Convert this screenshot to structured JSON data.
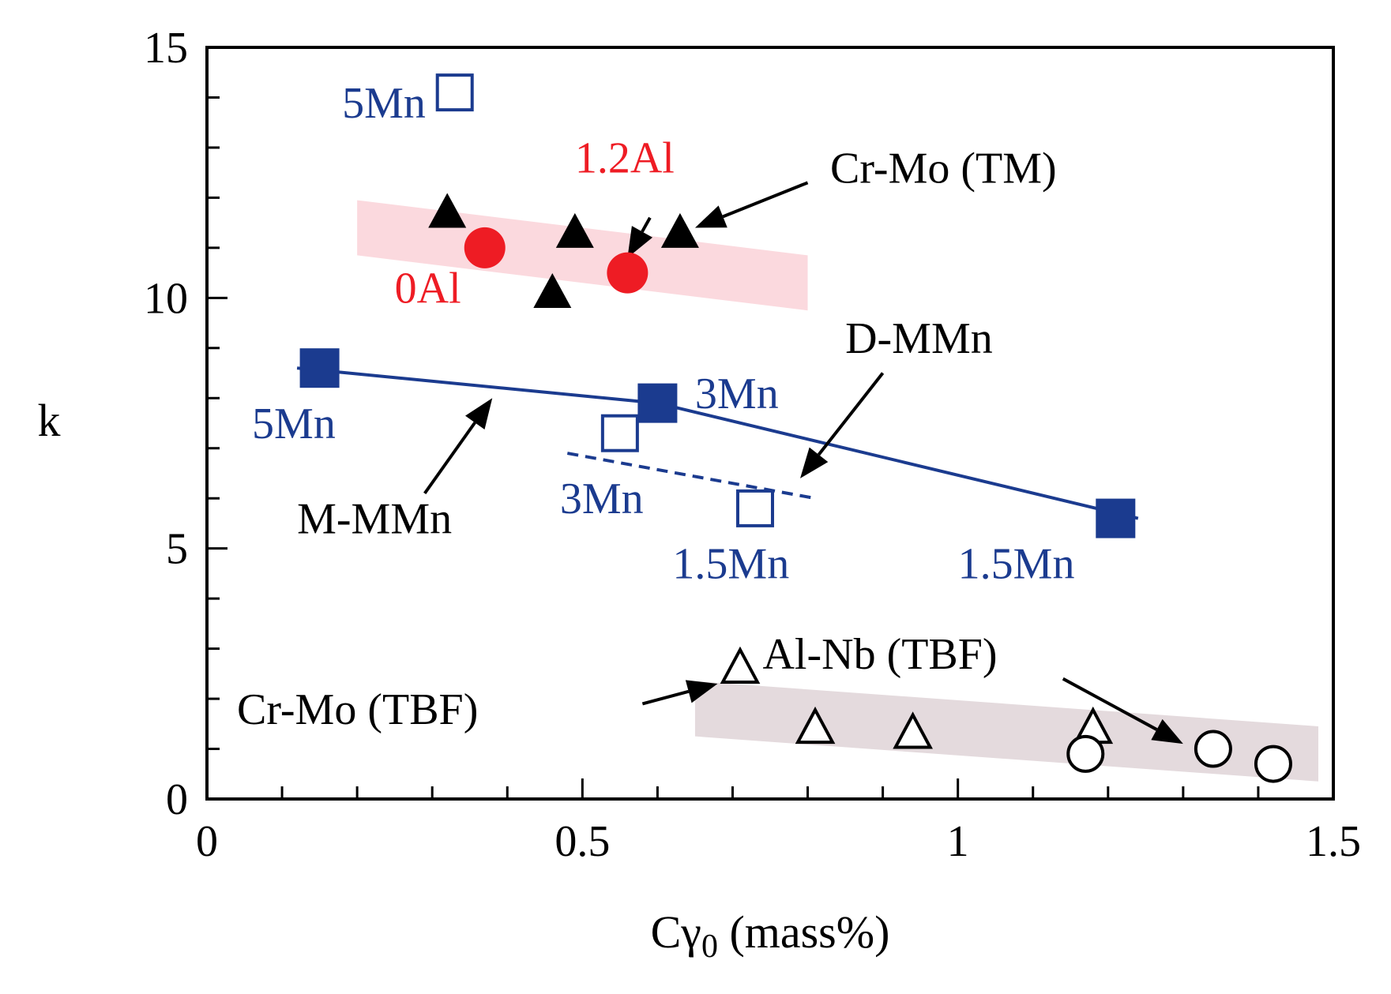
{
  "chart_data": {
    "type": "scatter",
    "title": "",
    "xlabel": "Cγ0 (mass%)",
    "xlabel_parts": {
      "main": "Cγ",
      "sub": "0",
      "rest": " (mass%)"
    },
    "ylabel": "k",
    "xlim": [
      0,
      1.5
    ],
    "ylim": [
      0,
      15
    ],
    "x_ticks": [
      0,
      0.5,
      1,
      1.5
    ],
    "x_tick_labels": [
      "0",
      "0.5",
      "1",
      "1.5"
    ],
    "y_ticks": [
      0,
      5,
      10,
      15
    ],
    "y_tick_labels": [
      "0",
      "5",
      "10",
      "15"
    ],
    "x_minor_step": 0.1,
    "y_minor_step": 1,
    "grid": false,
    "colors": {
      "red": "#ee1c24",
      "blue": "#1b3b8f",
      "black": "#000000",
      "pink_band": "#fbd9de",
      "gray_band": "#e4dadd"
    },
    "bands": [
      {
        "name": "pink-band",
        "color": "#fbd9de",
        "x": [
          0.2,
          0.8
        ],
        "y": [
          11.4,
          10.3
        ],
        "half_width_k": 0.55
      },
      {
        "name": "gray-band",
        "color": "#e4dadd",
        "x": [
          0.65,
          1.48
        ],
        "y": [
          1.8,
          0.9
        ],
        "half_width_k": 0.55
      }
    ],
    "series": [
      {
        "name": "M-MMn",
        "marker": "filled-square",
        "color": "#1b3b8f",
        "line": "solid",
        "x": [
          0.15,
          0.6,
          1.21
        ],
        "y": [
          8.6,
          7.9,
          5.6
        ]
      },
      {
        "name": "D-MMn",
        "marker": "open-square",
        "color": "#1b3b8f",
        "line": "dashed",
        "x": [
          0.55,
          0.73
        ],
        "y": [
          7.3,
          5.8
        ]
      },
      {
        "name": "5Mn (D-MMn)",
        "marker": "open-square",
        "color": "#1b3b8f",
        "line": "none",
        "x": [
          0.33
        ],
        "y": [
          14.1
        ]
      },
      {
        "name": "0Al / 1.2Al",
        "marker": "filled-circle",
        "color": "#ee1c24",
        "line": "none",
        "x": [
          0.37,
          0.56
        ],
        "y": [
          11.0,
          10.5
        ]
      },
      {
        "name": "Cr-Mo (TM)",
        "marker": "filled-triangle",
        "color": "#000000",
        "line": "none",
        "x": [
          0.32,
          0.46,
          0.49,
          0.63
        ],
        "y": [
          11.7,
          10.1,
          11.3,
          11.3
        ]
      },
      {
        "name": "Cr-Mo (TBF)",
        "marker": "open-triangle",
        "color": "#000000",
        "line": "none",
        "x": [
          0.71,
          0.81,
          0.94,
          1.18
        ],
        "y": [
          2.6,
          1.4,
          1.3,
          1.4
        ]
      },
      {
        "name": "Al-Nb (TBF)",
        "marker": "open-circle",
        "color": "#000000",
        "line": "none",
        "x": [
          1.17,
          1.34,
          1.42
        ],
        "y": [
          0.9,
          1.0,
          0.7
        ]
      }
    ],
    "fit_lines": [
      {
        "name": "M-MMn-line",
        "style": "solid",
        "color": "#1b3b8f",
        "x": [
          0.12,
          0.6,
          1.24
        ],
        "y": [
          8.6,
          7.9,
          5.6
        ]
      },
      {
        "name": "D-MMn-line",
        "style": "dashed",
        "color": "#1b3b8f",
        "x": [
          0.48,
          0.81
        ],
        "y": [
          6.9,
          6.0
        ]
      }
    ],
    "annotations": [
      {
        "name": "label-5Mn-open",
        "text": "5Mn",
        "color": "#1b3b8f",
        "x": 0.18,
        "y": 13.6
      },
      {
        "name": "label-1.2Al",
        "text": "1.2Al",
        "color": "#ee1c24",
        "x": 0.49,
        "y": 12.5
      },
      {
        "name": "label-0Al",
        "text": "0Al",
        "color": "#ee1c24",
        "x": 0.25,
        "y": 9.9
      },
      {
        "name": "label-cr-mo-tm",
        "text": "Cr-Mo (TM)",
        "color": "#000000",
        "x": 0.83,
        "y": 12.3
      },
      {
        "name": "label-d-mmn",
        "text": "D-MMn",
        "color": "#000000",
        "x": 0.85,
        "y": 8.9
      },
      {
        "name": "label-3Mn-filled",
        "text": "3Mn",
        "color": "#1b3b8f",
        "x": 0.65,
        "y": 7.8
      },
      {
        "name": "label-5Mn-filled",
        "text": "5Mn",
        "color": "#1b3b8f",
        "x": 0.06,
        "y": 7.2
      },
      {
        "name": "label-3Mn-open",
        "text": "3Mn",
        "color": "#1b3b8f",
        "x": 0.47,
        "y": 5.7
      },
      {
        "name": "label-m-mmn",
        "text": "M-MMn",
        "color": "#000000",
        "x": 0.12,
        "y": 5.3
      },
      {
        "name": "label-1.5Mn-open",
        "text": "1.5Mn",
        "color": "#1b3b8f",
        "x": 0.62,
        "y": 4.4
      },
      {
        "name": "label-1.5Mn-filled",
        "text": "1.5Mn",
        "color": "#1b3b8f",
        "x": 1.0,
        "y": 4.4
      },
      {
        "name": "label-al-nb-tbf",
        "text": "Al-Nb (TBF)",
        "color": "#000000",
        "x": 0.74,
        "y": 2.6
      },
      {
        "name": "label-cr-mo-tbf",
        "text": "Cr-Mo (TBF)",
        "color": "#000000",
        "x": 0.04,
        "y": 1.5
      }
    ],
    "arrows": [
      {
        "name": "arrow-1.2Al",
        "from": [
          0.59,
          11.6
        ],
        "to": [
          0.56,
          10.8
        ]
      },
      {
        "name": "arrow-cr-mo-tm",
        "from": [
          0.8,
          12.3
        ],
        "to": [
          0.65,
          11.4
        ]
      },
      {
        "name": "arrow-d-mmn",
        "from": [
          0.9,
          8.5
        ],
        "to": [
          0.79,
          6.4
        ]
      },
      {
        "name": "arrow-m-mmn",
        "from": [
          0.29,
          6.1
        ],
        "to": [
          0.38,
          8.0
        ]
      },
      {
        "name": "arrow-cr-mo-tbf",
        "from": [
          0.58,
          1.9
        ],
        "to": [
          0.68,
          2.3
        ]
      },
      {
        "name": "arrow-al-nb-tbf",
        "from": [
          1.14,
          2.4
        ],
        "to": [
          1.3,
          1.1
        ]
      }
    ]
  }
}
